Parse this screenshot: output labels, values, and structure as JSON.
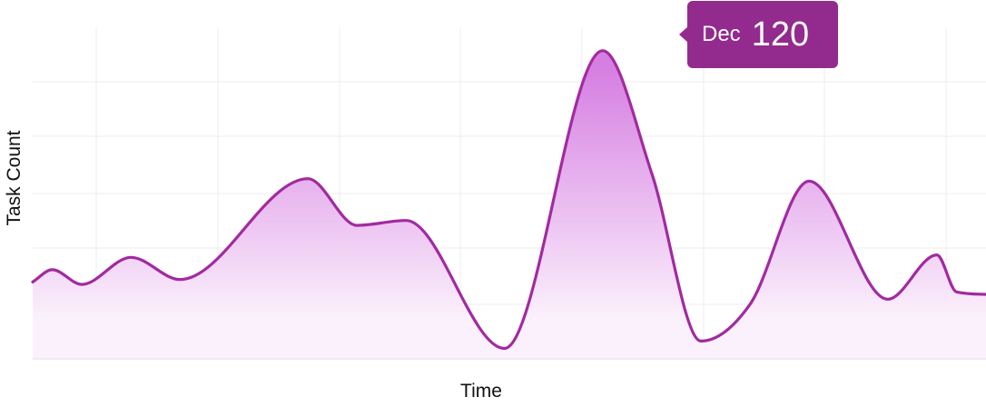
{
  "chart_data": {
    "type": "area",
    "xlabel": "Time",
    "ylabel": "Task Count",
    "curve": "smooth",
    "points": [
      [
        0,
        22
      ],
      [
        2,
        27
      ],
      [
        5,
        21
      ],
      [
        10,
        32
      ],
      [
        15,
        23
      ],
      [
        28,
        64
      ],
      [
        33,
        45
      ],
      [
        38,
        47
      ],
      [
        48,
        -5
      ],
      [
        58,
        116
      ],
      [
        63,
        66
      ],
      [
        68,
        -2
      ],
      [
        73,
        13
      ],
      [
        79,
        63
      ],
      [
        87,
        15
      ],
      [
        92,
        33
      ],
      [
        94,
        18
      ],
      [
        97,
        17
      ]
    ],
    "tooltip": {
      "category": "Dec",
      "value": "120"
    },
    "colors": {
      "line": "#a22aa0",
      "fill_top": "#d67fe2",
      "fill_bottom": "#fbf1fc",
      "tooltip": "#932a8d",
      "grid": "#ececec"
    },
    "grid": true
  }
}
